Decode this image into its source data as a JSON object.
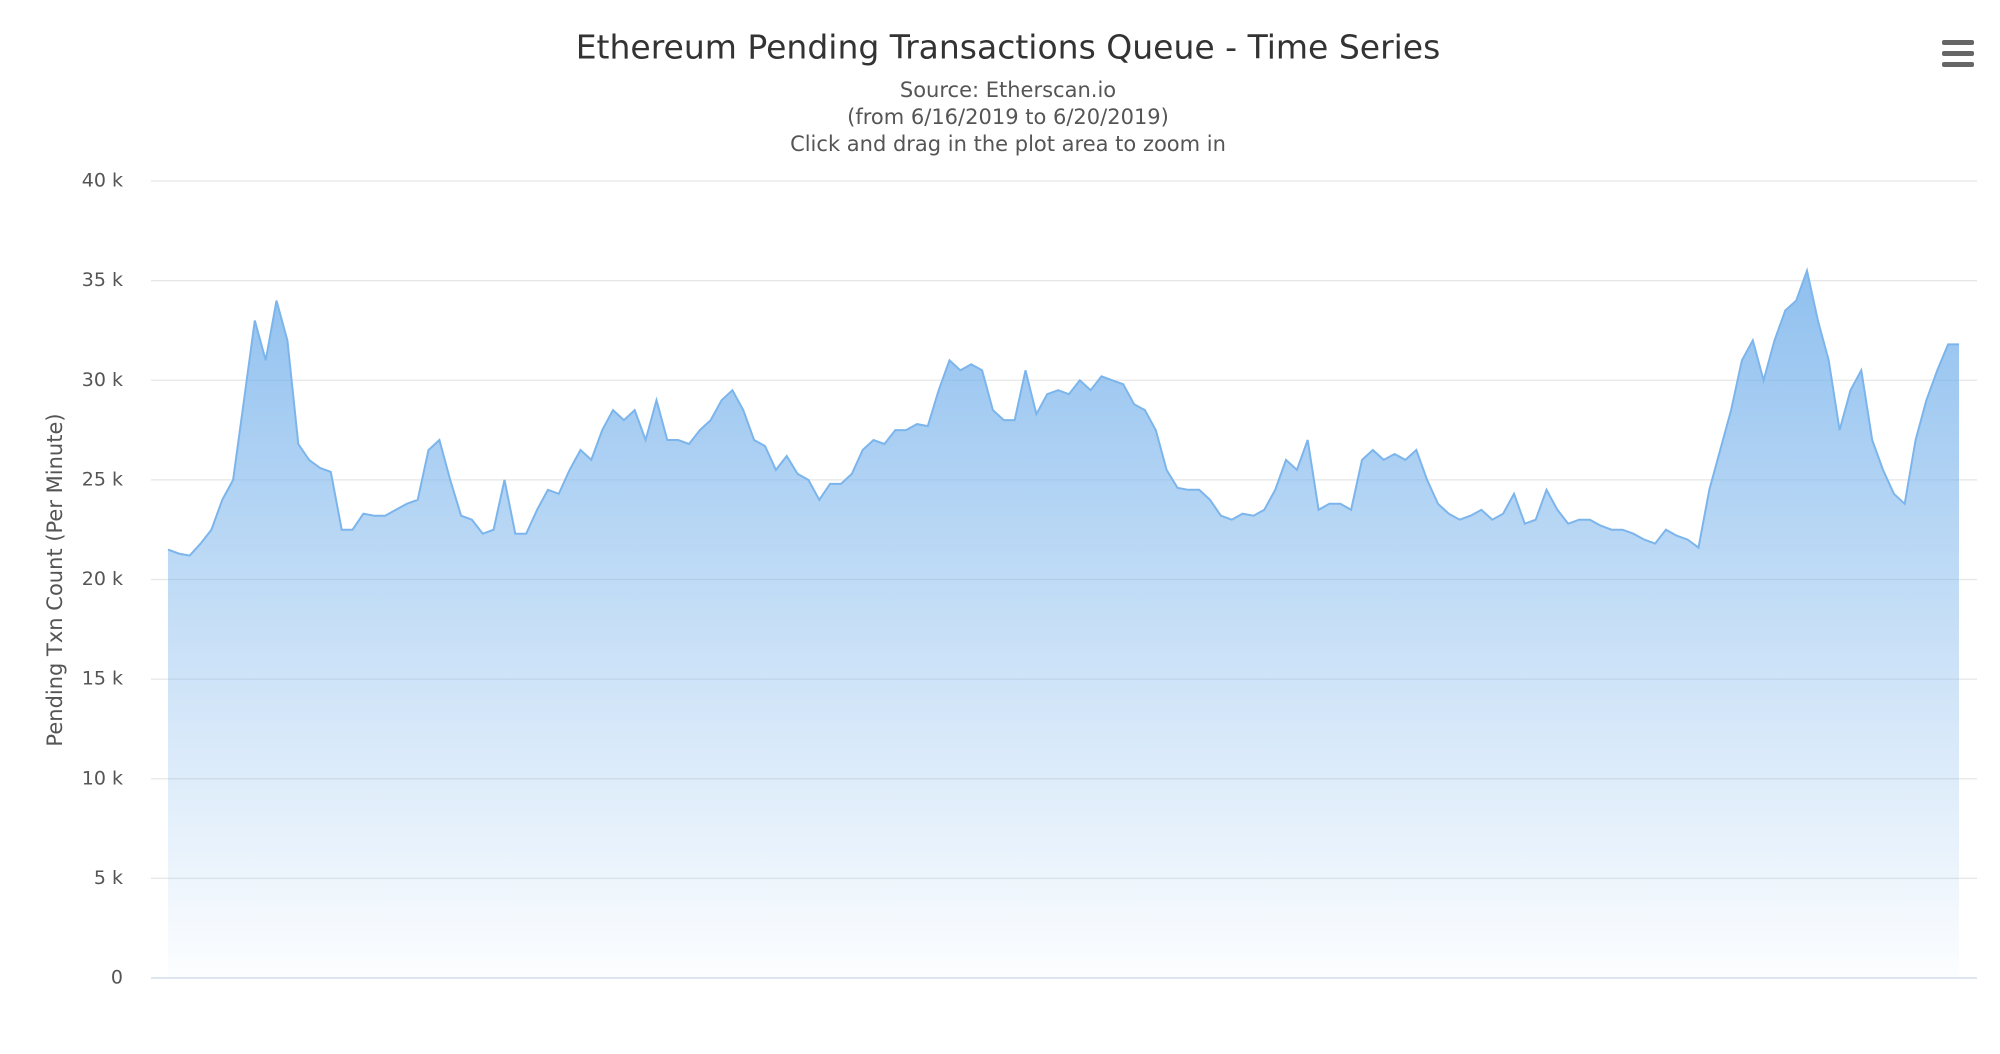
{
  "chart_data": {
    "type": "area",
    "title": "Ethereum Pending Transactions Queue - Time Series",
    "subtitle": [
      "Source: Etherscan.io",
      "(from 6/16/2019 to 6/20/2019)",
      "Click and drag in the plot area to zoom in"
    ],
    "y_label": "Pending Txn Count (Per Minute)",
    "color": "#7cb5ec",
    "grid": true,
    "ylim": [
      0,
      40000
    ],
    "yticks": [
      {
        "value": 0,
        "label": "0"
      },
      {
        "value": 5000,
        "label": "5 k"
      },
      {
        "value": 10000,
        "label": "10 k"
      },
      {
        "value": 15000,
        "label": "15 k"
      },
      {
        "value": 20000,
        "label": "20 k"
      },
      {
        "value": 25000,
        "label": "25 k"
      },
      {
        "value": 30000,
        "label": "30 k"
      },
      {
        "value": 35000,
        "label": "35 k"
      },
      {
        "value": 40000,
        "label": "40 k"
      }
    ],
    "values": [
      21500,
      21300,
      21200,
      21800,
      22500,
      24000,
      25000,
      29000,
      33000,
      31000,
      34000,
      32000,
      26800,
      26000,
      25600,
      25400,
      22500,
      22500,
      23300,
      23200,
      23200,
      23500,
      23800,
      24000,
      26500,
      27000,
      25000,
      23200,
      23000,
      22300,
      22500,
      25000,
      22300,
      22300,
      23500,
      24500,
      24300,
      25500,
      26500,
      26000,
      27500,
      28500,
      28000,
      28500,
      27000,
      29000,
      27000,
      27000,
      26800,
      27500,
      28000,
      29000,
      29500,
      28500,
      27000,
      26700,
      25500,
      26200,
      25300,
      25000,
      24000,
      24800,
      24800,
      25300,
      26500,
      27000,
      26800,
      27500,
      27500,
      27800,
      27700,
      29500,
      31000,
      30500,
      30800,
      30500,
      28500,
      28000,
      28000,
      30500,
      28300,
      29300,
      29500,
      29300,
      30000,
      29500,
      30200,
      30000,
      29800,
      28800,
      28500,
      27500,
      25500,
      24600,
      24500,
      24500,
      24000,
      23200,
      23000,
      23300,
      23200,
      23500,
      24500,
      26000,
      25500,
      27000,
      23500,
      23800,
      23800,
      23500,
      26000,
      26500,
      26000,
      26300,
      26000,
      26500,
      25000,
      23800,
      23300,
      23000,
      23200,
      23500,
      23000,
      23300,
      24300,
      22800,
      23000,
      24500,
      23500,
      22800,
      23000,
      23000,
      22700,
      22500,
      22500,
      22300,
      22000,
      21800,
      22500,
      22200,
      22000,
      21600,
      24500,
      26500,
      28500,
      31000,
      32000,
      30000,
      32000,
      33500,
      34000,
      35500,
      33000,
      31000,
      27500,
      29500,
      30500,
      27000,
      25500,
      24300,
      23800,
      27000,
      29000,
      30500,
      31800,
      31800
    ]
  }
}
